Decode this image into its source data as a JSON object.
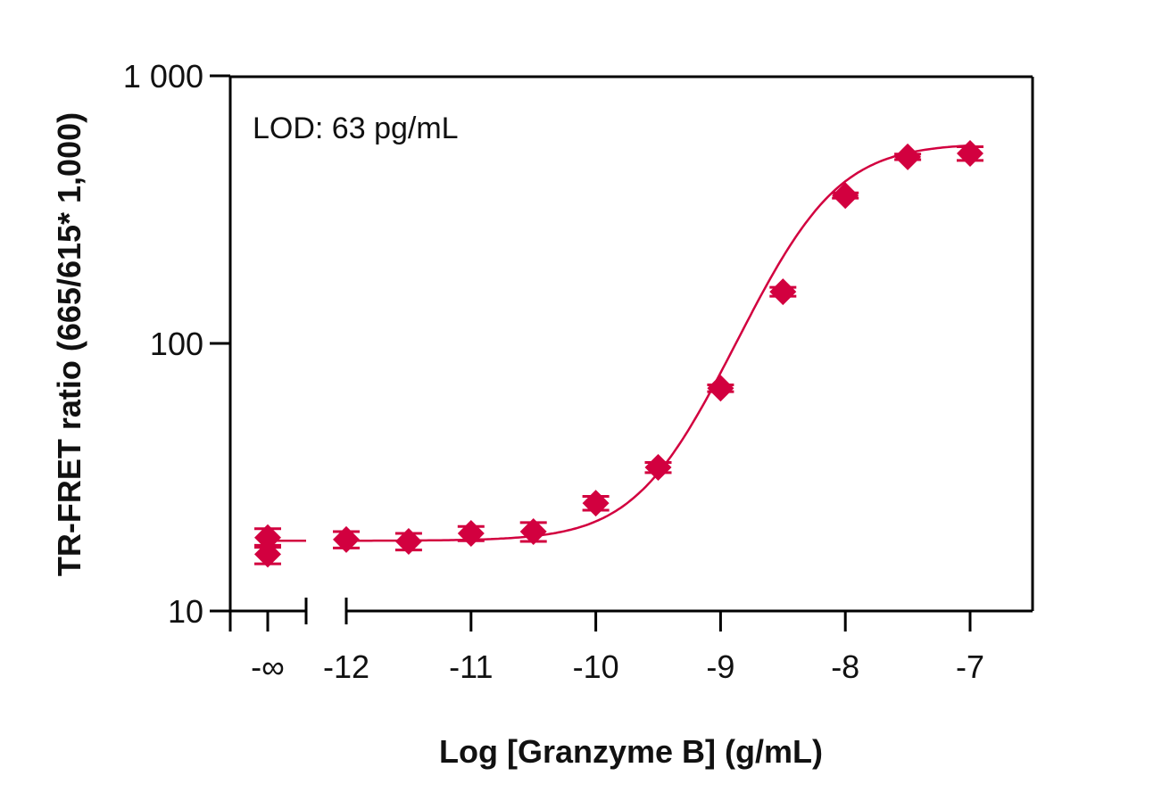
{
  "chart_data": {
    "type": "scatter",
    "xlabel": "Log [Granzyme B] (g/mL)",
    "ylabel": "TR-FRET ratio (665/615* 1,000)",
    "annotation": "LOD: 63 pg/mL",
    "y_scale": "log",
    "ylim": [
      10,
      1000
    ],
    "xlim": [
      -12.3,
      -6.5
    ],
    "y_ticks": [
      {
        "value": 10,
        "label": "10"
      },
      {
        "value": 100,
        "label": "100"
      },
      {
        "value": 1000,
        "label": "1 000"
      }
    ],
    "x_ticks": [
      {
        "value": "-inf",
        "label": "-∞"
      },
      {
        "value": -12,
        "label": "-12"
      },
      {
        "value": -11,
        "label": "-11"
      },
      {
        "value": -10,
        "label": "-10"
      },
      {
        "value": -9,
        "label": "-9"
      },
      {
        "value": -8,
        "label": "-8"
      },
      {
        "value": -7,
        "label": "-7"
      }
    ],
    "x_axis_break": true,
    "grid": false,
    "marker": "diamond",
    "color": "#D2003F",
    "fit": "sigmoidal curve",
    "points": [
      {
        "x": "-inf",
        "y": 18.8,
        "err": 1.5
      },
      {
        "x": "-inf",
        "y": 16.3,
        "err": 1.3
      },
      {
        "x": -12,
        "y": 18.5,
        "err": 1.3
      },
      {
        "x": -11.5,
        "y": 18.2,
        "err": 1.3
      },
      {
        "x": -11,
        "y": 19.5,
        "err": 1.2
      },
      {
        "x": -10.5,
        "y": 19.8,
        "err": 1.6
      },
      {
        "x": -10,
        "y": 25.3,
        "err": 1.5
      },
      {
        "x": -9.5,
        "y": 34.4,
        "err": 1.5
      },
      {
        "x": -9,
        "y": 68,
        "err": 2
      },
      {
        "x": -8.5,
        "y": 156,
        "err": 6
      },
      {
        "x": -8,
        "y": 357,
        "err": 8
      },
      {
        "x": -7.5,
        "y": 498,
        "err": 12
      },
      {
        "x": -7,
        "y": 513,
        "err": 30
      }
    ]
  }
}
